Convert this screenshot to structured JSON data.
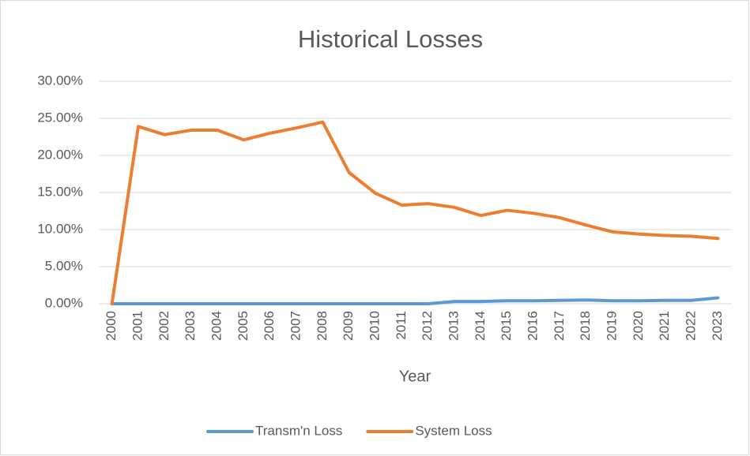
{
  "chart_data": {
    "type": "line",
    "title": "Historical Losses",
    "x_label": "Year",
    "categories": [
      "2000",
      "2001",
      "2002",
      "2003",
      "2004",
      "2005",
      "2006",
      "2007",
      "2008",
      "2009",
      "2010",
      "2011",
      "2012",
      "2013",
      "2014",
      "2015",
      "2016",
      "2017",
      "2018",
      "2019",
      "2020",
      "2021",
      "2022",
      "2023"
    ],
    "series": [
      {
        "name": "Transm'n Loss",
        "color": "#5b9bd5",
        "values": [
          0,
          0,
          0,
          0,
          0,
          0,
          0,
          0,
          0,
          0,
          0,
          0,
          0,
          0.3,
          0.3,
          0.4,
          0.4,
          0.45,
          0.5,
          0.4,
          0.4,
          0.45,
          0.45,
          0.8
        ]
      },
      {
        "name": "System Loss",
        "color": "#ed7d31",
        "values": [
          0,
          23.9,
          22.8,
          23.4,
          23.4,
          22.1,
          23.0,
          23.7,
          24.5,
          17.7,
          14.9,
          13.3,
          13.5,
          13.0,
          11.9,
          12.6,
          12.2,
          11.6,
          10.6,
          9.7,
          9.4,
          9.2,
          9.1,
          8.8
        ]
      }
    ],
    "ylim": [
      0,
      30
    ],
    "yticks": [
      {
        "value": 0,
        "label": "0.00%"
      },
      {
        "value": 5,
        "label": "5.00%"
      },
      {
        "value": 10,
        "label": "10.00%"
      },
      {
        "value": 15,
        "label": "15.00%"
      },
      {
        "value": 20,
        "label": "20.00%"
      },
      {
        "value": 25,
        "label": "25.00%"
      },
      {
        "value": 30,
        "label": "30.00%"
      }
    ],
    "grid": true,
    "legend": "bottom"
  }
}
